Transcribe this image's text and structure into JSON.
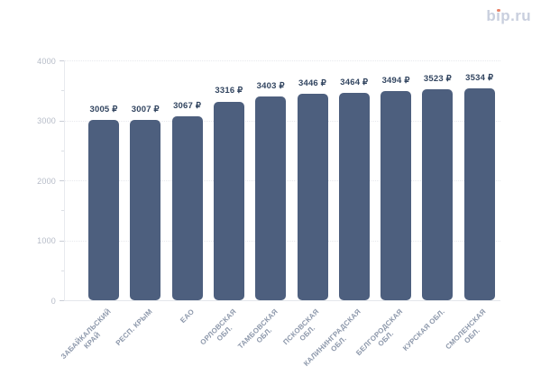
{
  "logo": {
    "text": "bip.ru",
    "part1": "b",
    "part2": "ı",
    "part3": "p.ru"
  },
  "colors": {
    "bar": "#4d5f7e",
    "value_label": "#324560",
    "x_label": "#8d98ab",
    "y_label": "#b5bbc7",
    "gridline": "#e7e9ed",
    "axis_line": "#e8eaee",
    "logo_text": "#c9cfde",
    "logo_dot": "#e8836a",
    "background": "#ffffff"
  },
  "chart_data": {
    "type": "bar",
    "title": "",
    "xlabel": "",
    "ylabel": "",
    "categories": [
      "ЗАБАЙКАЛЬСКИЙ КРАЙ",
      "РЕСП. КРЫМ",
      "ЕАО",
      "ОРЛОВСКАЯ ОБЛ.",
      "ТАМБОВСКАЯ ОБЛ.",
      "ПСКОВСКАЯ ОБЛ.",
      "КАЛИНИНГРАДСКАЯ ОБЛ.",
      "БЕЛГОРОДСКАЯ ОБЛ.",
      "КУРСКАЯ ОБЛ.",
      "СМОЛЕНСКАЯ ОБЛ."
    ],
    "categories_lines": [
      [
        "ЗАБАЙКАЛЬСКИЙ",
        "КРАЙ"
      ],
      [
        "РЕСП. КРЫМ"
      ],
      [
        "ЕАО"
      ],
      [
        "ОРЛОВСКАЯ",
        "ОБЛ."
      ],
      [
        "ТАМБОВСКАЯ",
        "ОБЛ."
      ],
      [
        "ПСКОВСКАЯ",
        "ОБЛ."
      ],
      [
        "КАЛИНИНГРАДСКАЯ",
        "ОБЛ."
      ],
      [
        "БЕЛГОРОДСКАЯ",
        "ОБЛ."
      ],
      [
        "КУРСКАЯ ОБЛ."
      ],
      [
        "СМОЛЕНСКАЯ",
        "ОБЛ."
      ]
    ],
    "values": [
      3005,
      3007,
      3067,
      3316,
      3403,
      3446,
      3464,
      3494,
      3523,
      3534
    ],
    "bar_labels": [
      "3005 ₽",
      "3007 ₽",
      "3067 ₽",
      "3316 ₽",
      "3403 ₽",
      "3446 ₽",
      "3464 ₽",
      "3494 ₽",
      "3523 ₽",
      "3534 ₽"
    ],
    "currency": "₽",
    "ylim": [
      0,
      4000
    ],
    "yticks": [
      0,
      1000,
      2000,
      3000,
      4000
    ],
    "minor_yticks": [
      500,
      1500,
      2500,
      3500
    ],
    "grid": "horizontal-dotted",
    "legend": "none"
  }
}
